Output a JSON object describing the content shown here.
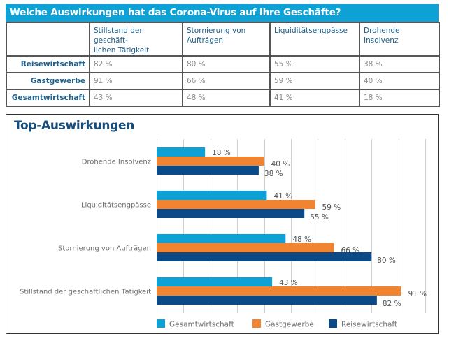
{
  "table": {
    "title": "Welche Auswirkungen hat das Corona-Virus auf Ihre Geschäfte?",
    "columns": [
      "",
      "Stillstand der geschäft-lichen Tätigkeit",
      "Stornierung von Aufträgen",
      "Liquiditätsengpässe",
      "Drohende Insolvenz"
    ],
    "column_lines": [
      [
        ""
      ],
      [
        "Stillstand der geschäft-",
        "lichen Tätigkeit"
      ],
      [
        "Stornierung von",
        "Aufträgen"
      ],
      [
        "Liquiditätsengpässe"
      ],
      [
        "Drohende Insolvenz"
      ]
    ],
    "rows": [
      {
        "label": "Reisewirtschaft",
        "cells": [
          "82 %",
          "80 %",
          "55 %",
          "38 %"
        ]
      },
      {
        "label": "Gastgewerbe",
        "cells": [
          "91 %",
          "66 %",
          "59 %",
          "40 %"
        ]
      },
      {
        "label": "Gesamtwirtschaft",
        "cells": [
          "43 %",
          "48 %",
          "41 %",
          "18 %"
        ]
      }
    ]
  },
  "chart_data": {
    "type": "bar",
    "orientation": "horizontal",
    "title": "Top-Auswirkungen",
    "xlabel": "",
    "ylabel": "",
    "xlim": [
      0,
      100
    ],
    "grid": true,
    "grid_step": 10,
    "value_suffix": " %",
    "categories": [
      "Drohende Insolvenz",
      "Liquiditätsengpässe",
      "Stornierung von Aufträgen",
      "Stillstand der geschäftlichen Tätigkeit"
    ],
    "series": [
      {
        "name": "Gesamtwirtschaft",
        "color": "#0ea1d6",
        "values": [
          18,
          41,
          48,
          43
        ]
      },
      {
        "name": "Gastgewerbe",
        "color": "#f08431",
        "values": [
          40,
          59,
          66,
          91
        ]
      },
      {
        "name": "Reisewirtschaft",
        "color": "#0b4a86",
        "values": [
          38,
          55,
          80,
          82
        ]
      }
    ],
    "legend_position": "bottom"
  }
}
